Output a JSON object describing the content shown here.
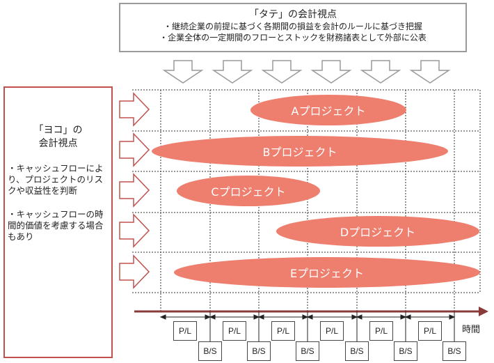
{
  "vertical_view": {
    "title": "「タテ」の会計視点",
    "lines": [
      "・継続企業の前提に基づく各期間の損益を会計のルールに基づき把握",
      "・企業全体の一定期間のフローとストックを財務諸表として外部に公表"
    ]
  },
  "horizontal_view": {
    "title_line1": "「ヨコ」の",
    "title_line2": "会計視点",
    "items": [
      "・キャッシュフローにより、プロジェクトのリスクや収益性を判断",
      "・キャッシュフローの時間的価値を考慮する場合もあり"
    ]
  },
  "projects": [
    "Aプロジェクト",
    "Bプロジェクト",
    "Cプロジェクト",
    "Dプロジェクト",
    "Eプロジェクト"
  ],
  "statements": {
    "pl": "P/L",
    "bs": "B/S"
  },
  "axis_label": "時間",
  "colors": {
    "project_fill": "#ee7f6f",
    "axis": "#8b3a3a",
    "left_border": "#c0504d",
    "arrow_stroke": "#c0504d",
    "top_arrow_stroke": "#999999"
  }
}
